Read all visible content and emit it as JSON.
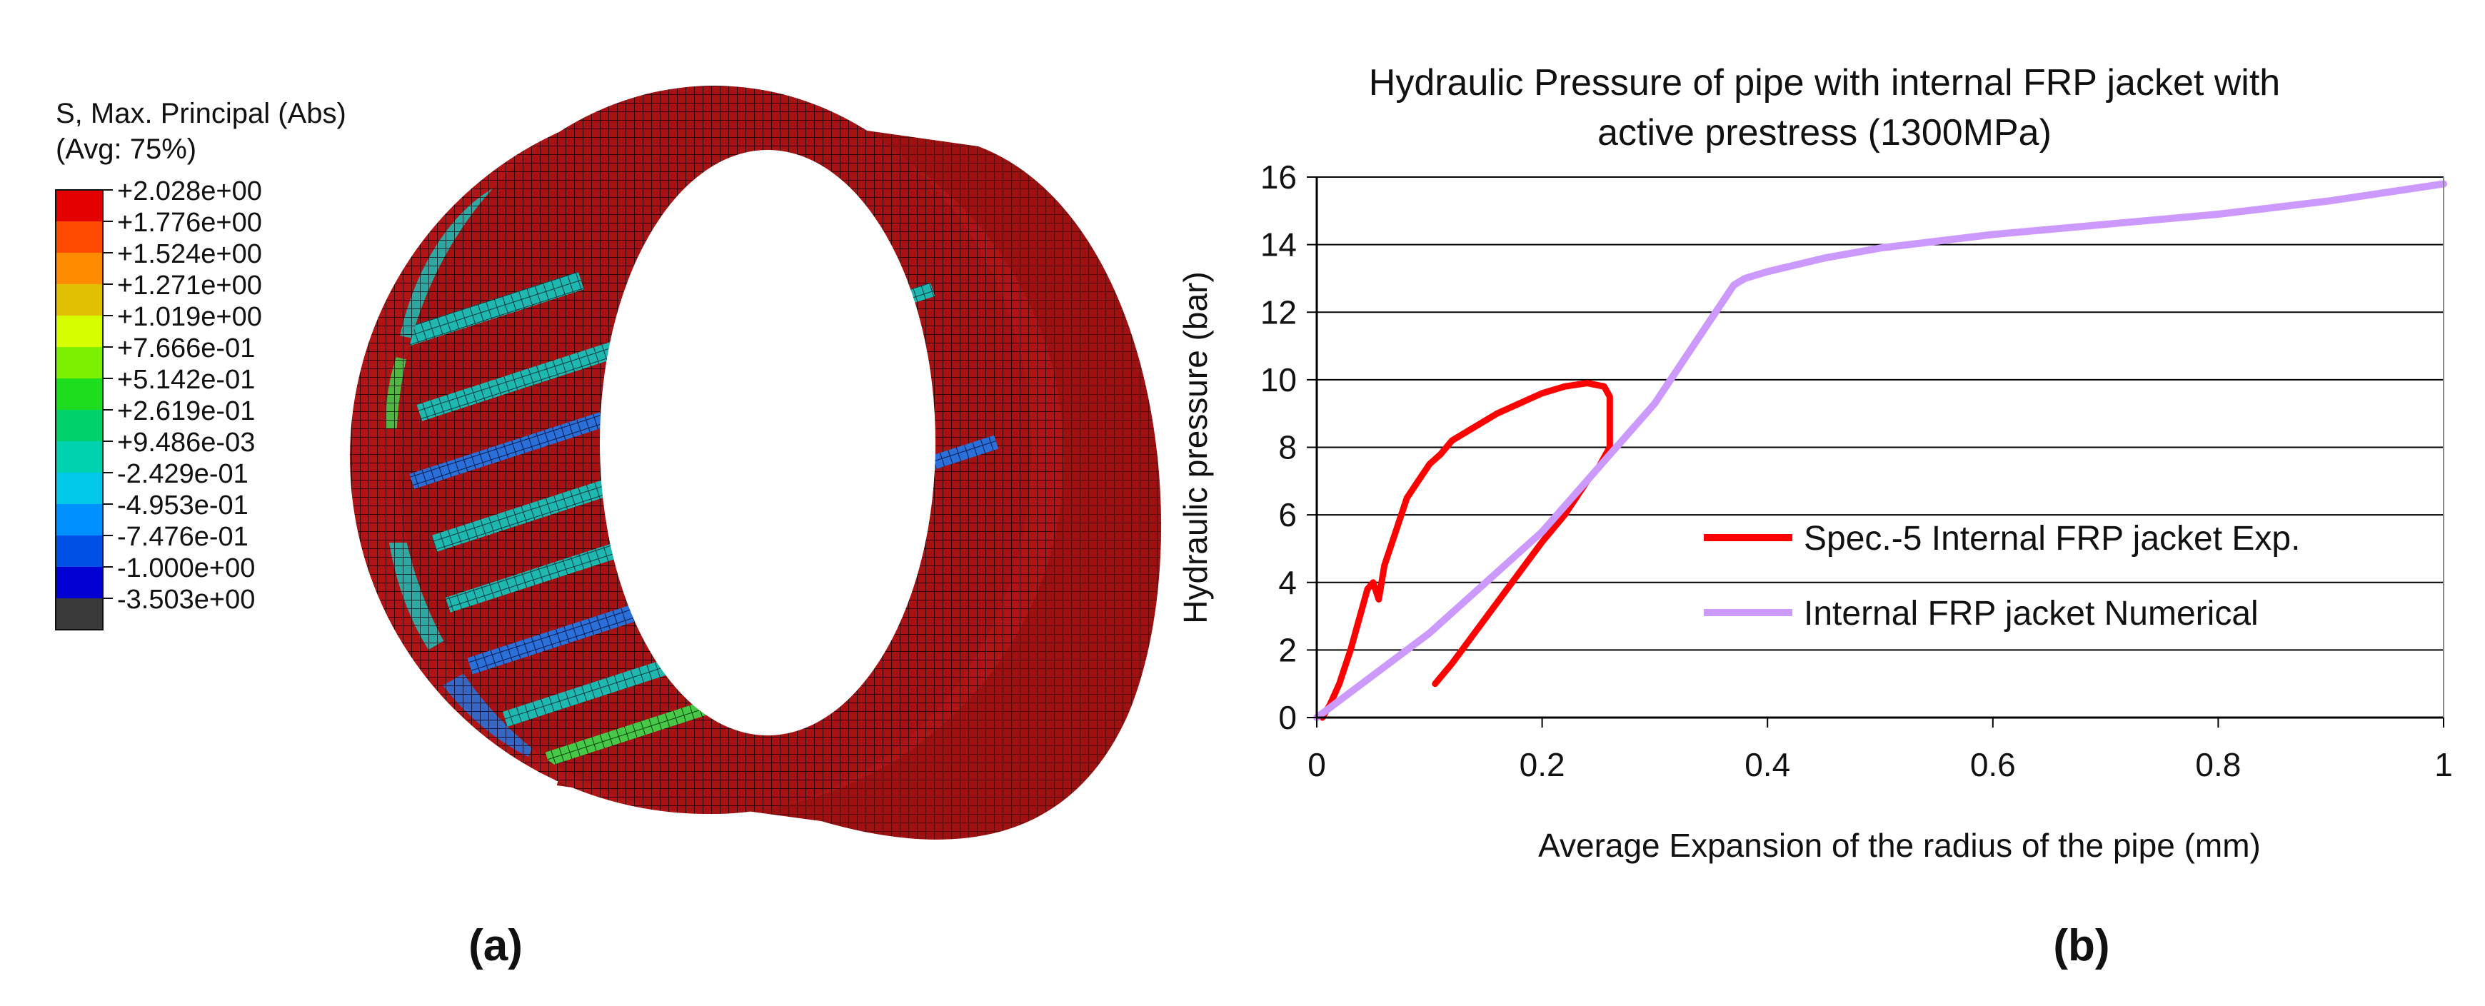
{
  "figure": {
    "panel_a_label": "(a)",
    "panel_b_label": "(b)"
  },
  "contour": {
    "title_line1": "S, Max. Principal (Abs)",
    "title_line2": "(Avg: 75%)",
    "levels": [
      {
        "label": "+2.028e+00",
        "color": "#e50000"
      },
      {
        "label": "+1.776e+00",
        "color": "#ff4a00"
      },
      {
        "label": "+1.524e+00",
        "color": "#ff8c00"
      },
      {
        "label": "+1.271e+00",
        "color": "#e0c000"
      },
      {
        "label": "+1.019e+00",
        "color": "#d8ff00"
      },
      {
        "label": "+7.666e-01",
        "color": "#7cf000"
      },
      {
        "label": "+5.142e-01",
        "color": "#1edc1e"
      },
      {
        "label": "+2.619e-01",
        "color": "#00d26a"
      },
      {
        "label": "+9.486e-03",
        "color": "#00d2b0"
      },
      {
        "label": "-2.429e-01",
        "color": "#00c8e6"
      },
      {
        "label": "-4.953e-01",
        "color": "#0090ff"
      },
      {
        "label": "-7.476e-01",
        "color": "#0050e6"
      },
      {
        "label": "-1.000e+00",
        "color": "#0000d2"
      },
      {
        "label": "-3.503e+00",
        "color": "#3a3a3a"
      }
    ]
  },
  "chart_data": {
    "type": "line",
    "title": "Hydraulic Pressure of pipe with internal FRP jacket with active prestress (1300MPa)",
    "title_line1": "Hydraulic Pressure of pipe with internal FRP jacket with",
    "title_line2": "active prestress (1300MPa)",
    "xlabel": "Average Expansion of the radius of the pipe (mm)",
    "ylabel": "Hydraulic pressure (bar)",
    "xlim": [
      0,
      1
    ],
    "ylim": [
      0,
      16
    ],
    "xticks": [
      0,
      0.2,
      0.4,
      0.6,
      0.8,
      1
    ],
    "xtick_labels": [
      "0",
      "0.2",
      "0.4",
      "0.6",
      "0.8",
      "1"
    ],
    "yticks": [
      0,
      2,
      4,
      6,
      8,
      10,
      12,
      14,
      16
    ],
    "ytick_labels": [
      "0",
      "2",
      "4",
      "6",
      "8",
      "10",
      "12",
      "14",
      "16"
    ],
    "grid": "horizontal",
    "legend_position": "center-right",
    "series": [
      {
        "name": "Spec.-5 Internal FRP jacket Exp.",
        "color": "#ff0000",
        "x": [
          0.005,
          0.012,
          0.02,
          0.025,
          0.03,
          0.035,
          0.04,
          0.045,
          0.05,
          0.055,
          0.06,
          0.065,
          0.07,
          0.075,
          0.08,
          0.09,
          0.1,
          0.11,
          0.12,
          0.14,
          0.16,
          0.18,
          0.2,
          0.22,
          0.24,
          0.255,
          0.26,
          0.26,
          0.255,
          0.25,
          0.24,
          0.23,
          0.22,
          0.2,
          0.18,
          0.16,
          0.14,
          0.12,
          0.11,
          0.105
        ],
        "y": [
          0.0,
          0.4,
          1.0,
          1.5,
          2.0,
          2.6,
          3.2,
          3.8,
          4.0,
          3.5,
          4.5,
          5.0,
          5.5,
          6.0,
          6.5,
          7.0,
          7.5,
          7.8,
          8.2,
          8.6,
          9.0,
          9.3,
          9.6,
          9.8,
          9.9,
          9.8,
          9.5,
          8.0,
          7.7,
          7.4,
          7.0,
          6.5,
          6.0,
          5.2,
          4.3,
          3.4,
          2.5,
          1.6,
          1.2,
          1.0
        ]
      },
      {
        "name": "Internal FRP jacket Numerical",
        "color": "#cc99ff",
        "x": [
          0,
          0.1,
          0.2,
          0.3,
          0.35,
          0.37,
          0.38,
          0.4,
          0.45,
          0.5,
          0.55,
          0.6,
          0.7,
          0.8,
          0.9,
          1.0
        ],
        "y": [
          0,
          2.5,
          5.5,
          9.3,
          11.8,
          12.8,
          13.0,
          13.2,
          13.6,
          13.9,
          14.1,
          14.3,
          14.6,
          14.9,
          15.3,
          15.8
        ]
      }
    ]
  }
}
